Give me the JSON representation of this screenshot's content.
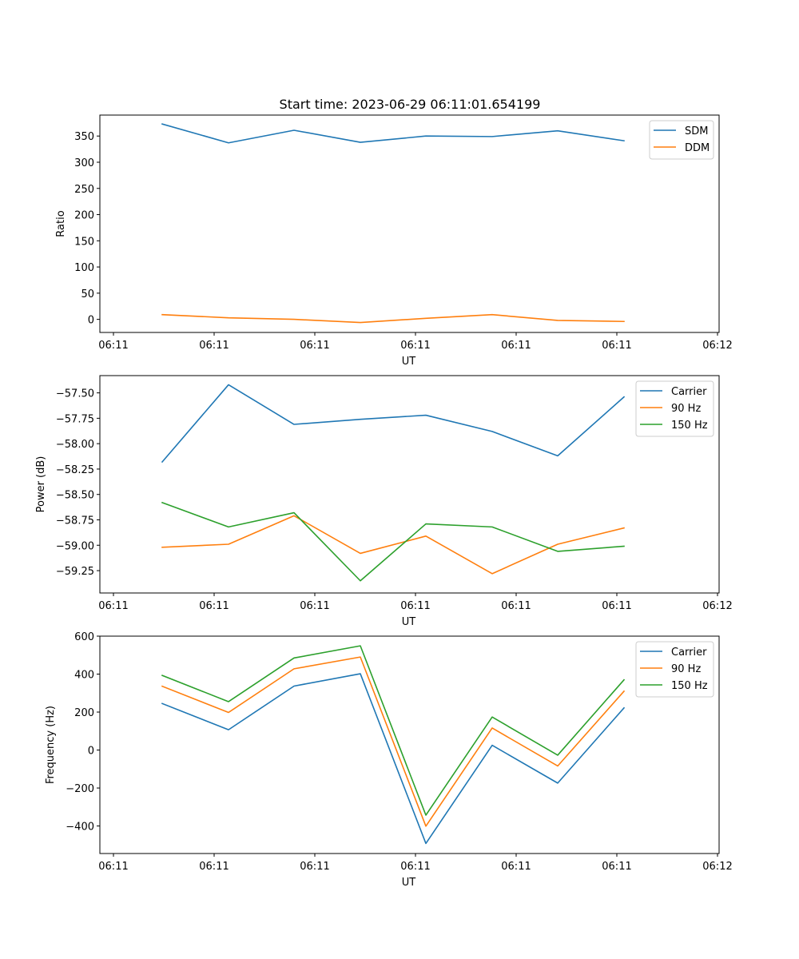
{
  "figure": {
    "title": "Start time: 2023-06-29 06:11:01.654199"
  },
  "chart_data": [
    {
      "type": "line",
      "title": "Start time: 2023-06-29 06:11:01.654199",
      "xlabel": "UT",
      "ylabel": "Ratio",
      "x_ticks": [
        "06:11",
        "06:11",
        "06:11",
        "06:11",
        "06:11",
        "06:11",
        "06:12"
      ],
      "y_ticks": [
        "0",
        "50",
        "100",
        "150",
        "200",
        "250",
        "300",
        "350"
      ],
      "ylim": [
        -25,
        390
      ],
      "grid": false,
      "legend_position": "upper right",
      "series": [
        {
          "name": "SDM",
          "color": "#1f77b4",
          "values": [
            373,
            337,
            361,
            338,
            350,
            349,
            360,
            341
          ]
        },
        {
          "name": "DDM",
          "color": "#ff7f0e",
          "values": [
            9,
            3,
            0,
            -6,
            2,
            9,
            -2,
            -4
          ]
        }
      ]
    },
    {
      "type": "line",
      "title": "",
      "xlabel": "UT",
      "ylabel": "Power (dB)",
      "x_ticks": [
        "06:11",
        "06:11",
        "06:11",
        "06:11",
        "06:11",
        "06:11",
        "06:12"
      ],
      "y_ticks": [
        "−59.25",
        "−59.00",
        "−58.75",
        "−58.50",
        "−58.25",
        "−58.00",
        "−57.75",
        "−57.50"
      ],
      "ylim": [
        -59.47,
        -57.33
      ],
      "grid": false,
      "legend_position": "upper right",
      "series": [
        {
          "name": "Carrier",
          "color": "#1f77b4",
          "values": [
            -58.18,
            -57.42,
            -57.81,
            -57.76,
            -57.72,
            -57.88,
            -58.12,
            -57.54
          ]
        },
        {
          "name": "90 Hz",
          "color": "#ff7f0e",
          "values": [
            -59.02,
            -58.99,
            -58.71,
            -59.08,
            -58.91,
            -59.28,
            -58.99,
            -58.83
          ]
        },
        {
          "name": "150 Hz",
          "color": "#2ca02c",
          "values": [
            -58.58,
            -58.82,
            -58.68,
            -59.35,
            -58.79,
            -58.82,
            -59.06,
            -59.01
          ]
        }
      ]
    },
    {
      "type": "line",
      "title": "",
      "xlabel": "UT",
      "ylabel": "Frequency (Hz)",
      "x_ticks": [
        "06:11",
        "06:11",
        "06:11",
        "06:11",
        "06:11",
        "06:11",
        "06:12"
      ],
      "y_ticks": [
        "−400",
        "−200",
        "0",
        "200",
        "400",
        "600"
      ],
      "ylim": [
        -545,
        600
      ],
      "grid": false,
      "legend_position": "upper right",
      "series": [
        {
          "name": "Carrier",
          "color": "#1f77b4",
          "values": [
            245,
            107,
            337,
            402,
            -492,
            25,
            -174,
            222
          ]
        },
        {
          "name": "90 Hz",
          "color": "#ff7f0e",
          "values": [
            336,
            198,
            428,
            490,
            -401,
            116,
            -84,
            310
          ]
        },
        {
          "name": "150 Hz",
          "color": "#2ca02c",
          "values": [
            393,
            255,
            485,
            549,
            -343,
            174,
            -27,
            370
          ]
        }
      ]
    }
  ]
}
